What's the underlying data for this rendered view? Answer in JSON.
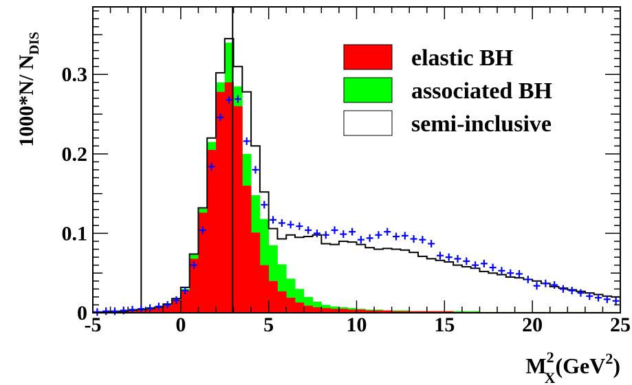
{
  "chart_data": {
    "type": "histogram",
    "xlabel_main": "M",
    "xlabel_sub": "X",
    "xlabel_sup": "2",
    "xlabel_unit_open": "(GeV",
    "xlabel_unit_sup": "2",
    "xlabel_unit_close": ")",
    "ylabel_main": "1000*N/ N",
    "ylabel_sub": "DIS",
    "xlim": [
      -5,
      25
    ],
    "ylim": [
      0,
      0.385
    ],
    "x_ticks": [
      -5,
      0,
      5,
      10,
      15,
      20,
      25
    ],
    "x_tick_labels": [
      "-5",
      "0",
      "5",
      "10",
      "15",
      "20",
      "25"
    ],
    "y_ticks": [
      0,
      0.1,
      0.2,
      0.3
    ],
    "y_tick_labels": [
      "0",
      "0.1",
      "0.2",
      "0.3"
    ],
    "bin_edges_start": -5,
    "bin_width": 0.5,
    "vertical_lines": [
      -2.25,
      2.95
    ],
    "series": [
      {
        "name": "associated BH",
        "color": "#00ff00",
        "style": "filled",
        "values": [
          0.001,
          0.001,
          0.001,
          0.002,
          0.002,
          0.003,
          0.004,
          0.006,
          0.01,
          0.017,
          0.03,
          0.073,
          0.131,
          0.215,
          0.29,
          0.34,
          0.285,
          0.2,
          0.148,
          0.118,
          0.085,
          0.061,
          0.043,
          0.03,
          0.02,
          0.014,
          0.01,
          0.008,
          0.007,
          0.006,
          0.005,
          0.004,
          0.004,
          0.003,
          0.003,
          0.003,
          0.002,
          0.002,
          0.002,
          0.002,
          0.002,
          0.002,
          0.002,
          0.002,
          0.001,
          0.001,
          0.001,
          0.001,
          0.001,
          0.001,
          0.001,
          0.001,
          0.001,
          0.001,
          0.001,
          0.001,
          0.001,
          0.001,
          0.001,
          0.001
        ]
      },
      {
        "name": "elastic BH",
        "color": "#ff0000",
        "style": "filled",
        "values": [
          0.001,
          0.001,
          0.001,
          0.002,
          0.002,
          0.003,
          0.004,
          0.006,
          0.009,
          0.016,
          0.028,
          0.068,
          0.126,
          0.205,
          0.278,
          0.29,
          0.26,
          0.16,
          0.101,
          0.06,
          0.04,
          0.027,
          0.019,
          0.013,
          0.009,
          0.007,
          0.006,
          0.005,
          0.005,
          0.004,
          0.004,
          0.003,
          0.003,
          0.003,
          0.002,
          0.002,
          0.002,
          0.002,
          0.002,
          0.002,
          0.002,
          0.001,
          0.001,
          0.001,
          0.001,
          0.001,
          0.001,
          0.001,
          0.001,
          0.001,
          0.001,
          0.001,
          0.001,
          0.001,
          0.001,
          0.001,
          0.001,
          0.001,
          0.001,
          0.001
        ]
      },
      {
        "name": "semi-inclusive",
        "color": "#000000",
        "style": "step",
        "values": [
          0.001,
          0.001,
          0.002,
          0.002,
          0.003,
          0.004,
          0.005,
          0.007,
          0.011,
          0.018,
          0.032,
          0.074,
          0.132,
          0.22,
          0.302,
          0.345,
          0.31,
          0.278,
          0.21,
          0.152,
          0.106,
          0.093,
          0.098,
          0.095,
          0.096,
          0.098,
          0.087,
          0.086,
          0.09,
          0.089,
          0.086,
          0.082,
          0.08,
          0.081,
          0.08,
          0.079,
          0.076,
          0.071,
          0.068,
          0.066,
          0.064,
          0.06,
          0.058,
          0.056,
          0.052,
          0.05,
          0.048,
          0.045,
          0.044,
          0.042,
          0.04,
          0.037,
          0.033,
          0.031,
          0.029,
          0.027,
          0.025,
          0.023,
          0.021,
          0.02
        ]
      },
      {
        "name": "data",
        "color": "#0000ff",
        "style": "markers",
        "values": [
          0.001,
          0.002,
          0.002,
          0.003,
          0.004,
          0.005,
          0.006,
          0.008,
          0.01,
          0.016,
          0.028,
          0.06,
          0.104,
          0.184,
          0.246,
          0.268,
          0.269,
          0.216,
          0.18,
          0.136,
          0.117,
          0.113,
          0.111,
          0.109,
          0.104,
          0.1,
          0.098,
          0.104,
          0.099,
          0.102,
          0.092,
          0.094,
          0.098,
          0.102,
          0.096,
          0.097,
          0.093,
          0.092,
          0.087,
          0.072,
          0.07,
          0.068,
          0.065,
          0.06,
          0.062,
          0.057,
          0.053,
          0.05,
          0.049,
          0.042,
          0.034,
          0.037,
          0.035,
          0.03,
          0.028,
          0.025,
          0.021,
          0.019,
          0.017,
          0.015
        ]
      }
    ],
    "legend": {
      "position": "top-right",
      "entries": [
        {
          "label": "elastic BH",
          "fill": "#ff0000"
        },
        {
          "label": "associated BH",
          "fill": "#00ff00"
        },
        {
          "label": "semi-inclusive",
          "fill": "#ffffff"
        }
      ]
    }
  }
}
